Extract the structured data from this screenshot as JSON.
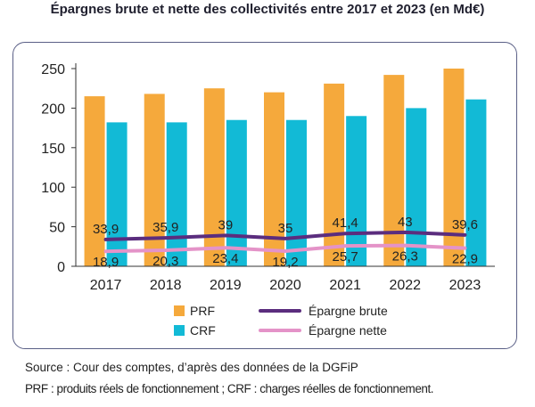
{
  "chart_data": {
    "type": "bar",
    "title": "Épargnes brute et nette des collectivités entre 2017 et 2023 (en Md€)",
    "categories": [
      "2017",
      "2018",
      "2019",
      "2020",
      "2021",
      "2022",
      "2023"
    ],
    "ylim": [
      0,
      250
    ],
    "yticks": [
      "0",
      "50",
      "100",
      "150",
      "200",
      "250"
    ],
    "grid": false,
    "legend_position": "bottom",
    "series": [
      {
        "name": "PRF",
        "kind": "bar",
        "color": "#f5a93c",
        "values": [
          215,
          218,
          225,
          220,
          231,
          242,
          250
        ]
      },
      {
        "name": "CRF",
        "kind": "bar",
        "color": "#12bad6",
        "values": [
          182,
          182,
          185,
          185,
          190,
          200,
          211
        ]
      },
      {
        "name": "Épargne brute",
        "kind": "line",
        "color": "#5b2d7e",
        "values": [
          33.9,
          35.9,
          39,
          35,
          41.4,
          43,
          39.6
        ],
        "labels": [
          "33,9",
          "35,9",
          "39",
          "35",
          "41,4",
          "43",
          "39,6"
        ]
      },
      {
        "name": "Épargne nette",
        "kind": "line",
        "color": "#e493c8",
        "values": [
          18.9,
          20.3,
          23.4,
          19.2,
          25.7,
          26.3,
          22.9
        ],
        "labels": [
          "18,9",
          "20,3",
          "23,4",
          "19,2",
          "25,7",
          "26,3",
          "22,9"
        ]
      }
    ]
  },
  "notes": {
    "source": "Source : Cour des comptes, d’après des données de la DGFiP",
    "definitions": "PRF : produits réels de fonctionnement ; CRF : charges réelles de fonctionnement."
  }
}
